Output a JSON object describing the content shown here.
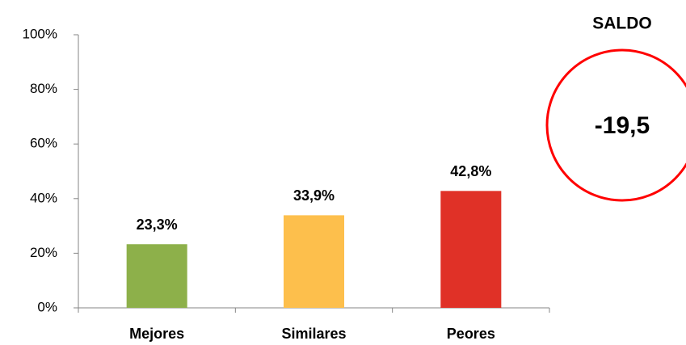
{
  "chart_data": {
    "type": "bar",
    "categories": [
      "Mejores",
      "Similares",
      "Peores"
    ],
    "values": [
      23.3,
      33.9,
      42.8
    ],
    "value_labels": [
      "23,3%",
      "33,9%",
      "42,8%"
    ],
    "colors": [
      "#8db04a",
      "#fdbf4c",
      "#e03127"
    ],
    "ylim": [
      0,
      100
    ],
    "yticks": [
      {
        "value": 0,
        "label": "0%"
      },
      {
        "value": 20,
        "label": "20%"
      },
      {
        "value": 40,
        "label": "40%"
      },
      {
        "value": 60,
        "label": "60%"
      },
      {
        "value": 80,
        "label": "80%"
      },
      {
        "value": 100,
        "label": "100%"
      }
    ],
    "grid": false,
    "saldo": {
      "title": "SALDO",
      "value": -19.5,
      "label": "-19,5"
    }
  }
}
